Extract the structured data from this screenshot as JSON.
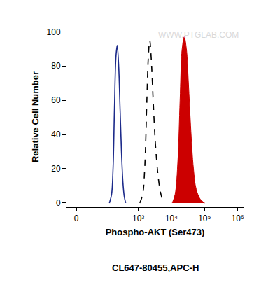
{
  "chart_data": {
    "type": "line",
    "xlabel": "Phospho-AKT (Ser473)",
    "ylabel": "Relative Cell Number",
    "subtitle": "CL647-80455,APC-H",
    "annotations": [
      "WWW.PTGLAB.COM"
    ],
    "xlim": [
      -20,
      1500000
    ],
    "xticks": [
      0,
      {
        "value": 1000,
        "label": "10³"
      },
      {
        "value": 10000,
        "label": "10⁴"
      },
      {
        "value": 100000,
        "label": "10⁵"
      },
      {
        "value": 1000000,
        "label": "10⁶"
      }
    ],
    "ylim": [
      -2.5,
      103
    ],
    "yticks": [
      0,
      20,
      40,
      60,
      80,
      100
    ],
    "grid": false,
    "series": [
      {
        "type": "line",
        "color": "#1c2a8a",
        "line_style": "solid",
        "x": [
          133,
          155,
          172,
          190,
          210,
          230,
          255,
          281,
          310,
          343,
          375,
          415
        ],
        "values": [
          0,
          5,
          20,
          55,
          85,
          92,
          80,
          55,
          30,
          12,
          4,
          0
        ]
      },
      {
        "type": "line",
        "color": "#000000",
        "line_style": "dashed",
        "x": [
          1110,
          1355,
          1560,
          1812,
          2003,
          2214,
          2446,
          2810,
          3270,
          4000,
          4830,
          5900
        ],
        "values": [
          0,
          5,
          20,
          60,
          85,
          95,
          85,
          60,
          35,
          15,
          5,
          0
        ]
      },
      {
        "type": "area",
        "color": "#cc0000",
        "line_style": "solid",
        "x": [
          10600,
          12900,
          15700,
          18200,
          21000,
          24400,
          28300,
          32600,
          37900,
          46200,
          55900,
          75400,
          100700
        ],
        "values": [
          0,
          5,
          25,
          60,
          90,
          97,
          90,
          70,
          45,
          20,
          8,
          2,
          0
        ]
      }
    ]
  }
}
